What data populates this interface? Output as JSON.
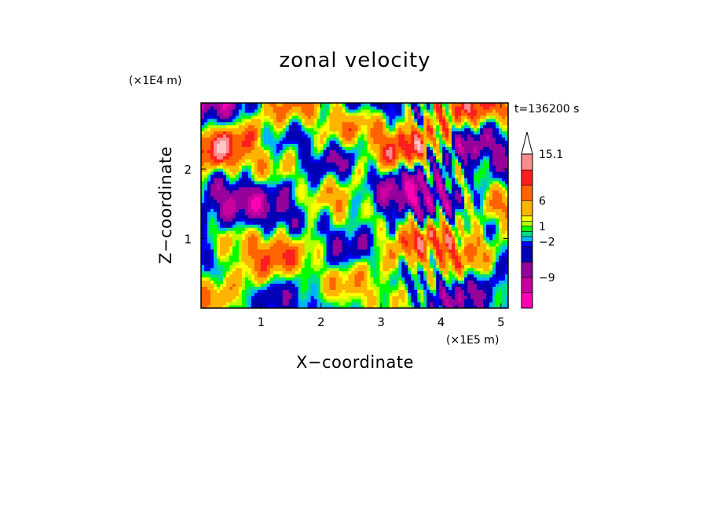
{
  "chart_data": {
    "type": "heatmap",
    "title": "zonal velocity",
    "xlabel": "X−coordinate",
    "ylabel": "Z−coordinate",
    "x_unit": "(×1E5 m)",
    "y_unit": "(×1E4 m)",
    "time_label": "t=136200 s",
    "xlim": [
      0.0,
      5.12
    ],
    "ylim": [
      0.0,
      2.95
    ],
    "xticks": [
      1,
      2,
      3,
      4,
      5
    ],
    "yticks": [
      1,
      2
    ],
    "colorbar": {
      "levels": [
        -15,
        -12,
        -9,
        -6,
        -3,
        -2,
        -1,
        0,
        1,
        2,
        3,
        6,
        9,
        12,
        15.1
      ],
      "colors": [
        "#ff00b4",
        "#c800a0",
        "#96009b",
        "#0000b4",
        "#0000ff",
        "#00b4ff",
        "#00dc8c",
        "#00ff00",
        "#b4ff00",
        "#ffff00",
        "#ffb400",
        "#ff6400",
        "#ff1e1e",
        "#ff8c8c",
        "#ffc8c8"
      ],
      "tick_labels": [
        "15.1",
        "6",
        "1",
        "−2",
        "−9"
      ],
      "tick_values": [
        15.1,
        6,
        1,
        -2,
        -9
      ],
      "extend": "max"
    }
  }
}
